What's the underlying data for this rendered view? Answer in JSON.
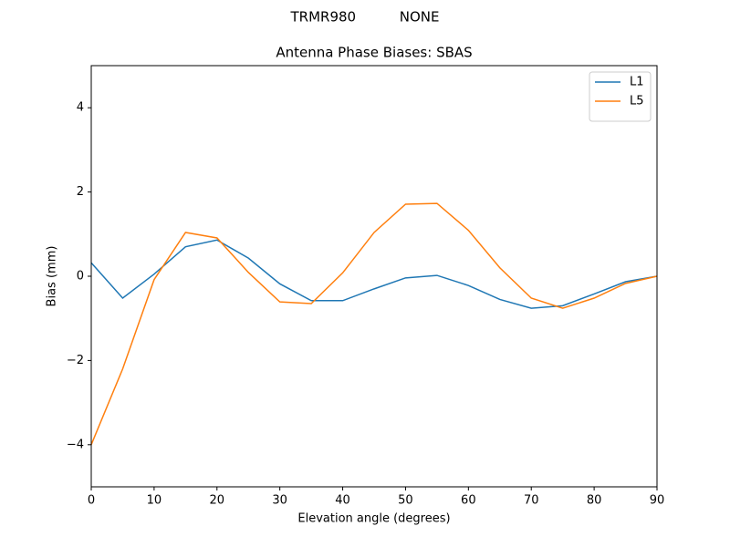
{
  "chart_data": {
    "type": "line",
    "suptitle": "TRMR980          NONE",
    "title": "Antenna Phase Biases: SBAS",
    "xlabel": "Elevation angle (degrees)",
    "ylabel": "Bias (mm)",
    "x": [
      0,
      5,
      10,
      15,
      20,
      25,
      30,
      35,
      40,
      45,
      50,
      55,
      60,
      65,
      70,
      75,
      80,
      85,
      90
    ],
    "series": [
      {
        "name": "L1",
        "color": "#1f77b4",
        "values": [
          0.32,
          -0.52,
          0.05,
          0.7,
          0.86,
          0.43,
          -0.18,
          -0.58,
          -0.58,
          -0.3,
          -0.04,
          0.02,
          -0.22,
          -0.55,
          -0.76,
          -0.7,
          -0.42,
          -0.13,
          0
        ]
      },
      {
        "name": "L5",
        "color": "#ff7f0e",
        "values": [
          -4.0,
          -2.2,
          -0.08,
          1.04,
          0.91,
          0.09,
          -0.61,
          -0.65,
          0.08,
          1.04,
          1.71,
          1.73,
          1.09,
          0.2,
          -0.52,
          -0.76,
          -0.52,
          -0.17,
          0
        ]
      }
    ],
    "xlim": [
      0,
      90
    ],
    "xticks": [
      0,
      10,
      20,
      30,
      40,
      50,
      60,
      70,
      80,
      90
    ],
    "ylim": [
      -5,
      5
    ],
    "yticks": [
      {
        "value": -4,
        "label": "−4"
      },
      {
        "value": -2,
        "label": "−2"
      },
      0,
      2,
      4
    ],
    "grid": false,
    "legend": "upper right"
  }
}
